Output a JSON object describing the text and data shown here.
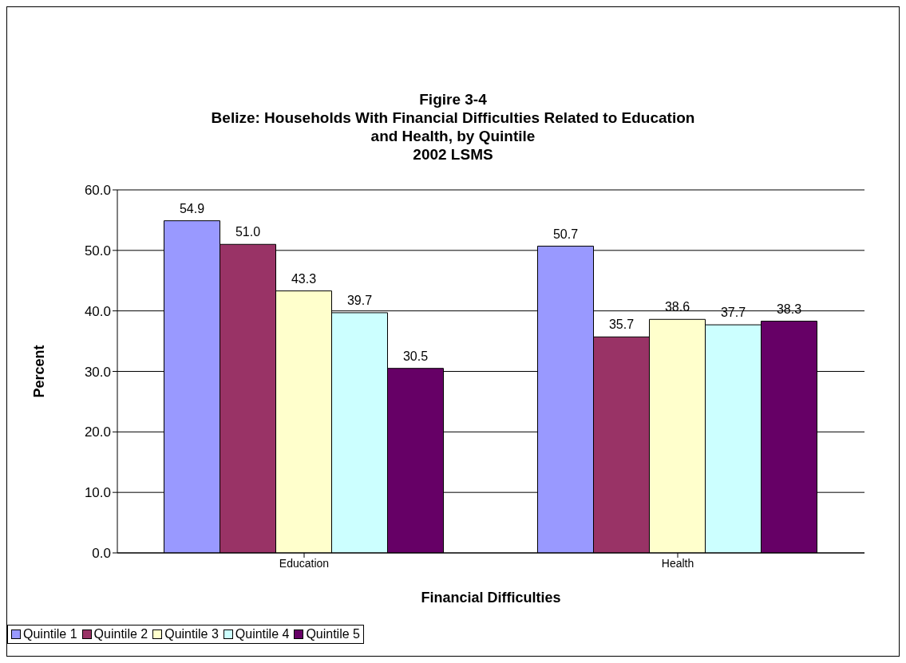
{
  "chart_data": {
    "type": "bar",
    "title": "Figire 3-4\nBelize: Households With Financial Difficulties Related to Education\nand Health, by Quintile\n2002 LSMS",
    "xlabel": "Financial Difficulties",
    "ylabel": "Percent",
    "categories": [
      "Education",
      "Health"
    ],
    "series": [
      {
        "name": "Quintile 1",
        "color": "#9999ff",
        "values": [
          54.9,
          50.7
        ],
        "value_labels": [
          "54.9",
          "50.7"
        ]
      },
      {
        "name": "Quintile 2",
        "color": "#993366",
        "values": [
          51.0,
          35.7
        ],
        "value_labels": [
          "51.0",
          "35.7"
        ]
      },
      {
        "name": "Quintile 3",
        "color": "#ffffcc",
        "values": [
          43.3,
          38.6
        ],
        "value_labels": [
          "43.3",
          "38.6"
        ]
      },
      {
        "name": "Quintile 4",
        "color": "#ccffff",
        "values": [
          39.7,
          37.7
        ],
        "value_labels": [
          "39.7",
          "37.7"
        ]
      },
      {
        "name": "Quintile 5",
        "color": "#660066",
        "values": [
          30.5,
          38.3
        ],
        "value_labels": [
          "30.5",
          "38.3"
        ]
      }
    ],
    "ylim": [
      0,
      60
    ],
    "yticks": [
      {
        "value": 0,
        "label": "0.0"
      },
      {
        "value": 10,
        "label": "10.0"
      },
      {
        "value": 20,
        "label": "20.0"
      },
      {
        "value": 30,
        "label": "30.0"
      },
      {
        "value": 40,
        "label": "40.0"
      },
      {
        "value": 50,
        "label": "50.0"
      },
      {
        "value": 60,
        "label": "60.0"
      }
    ],
    "grid": "y",
    "legend": "bottom"
  }
}
